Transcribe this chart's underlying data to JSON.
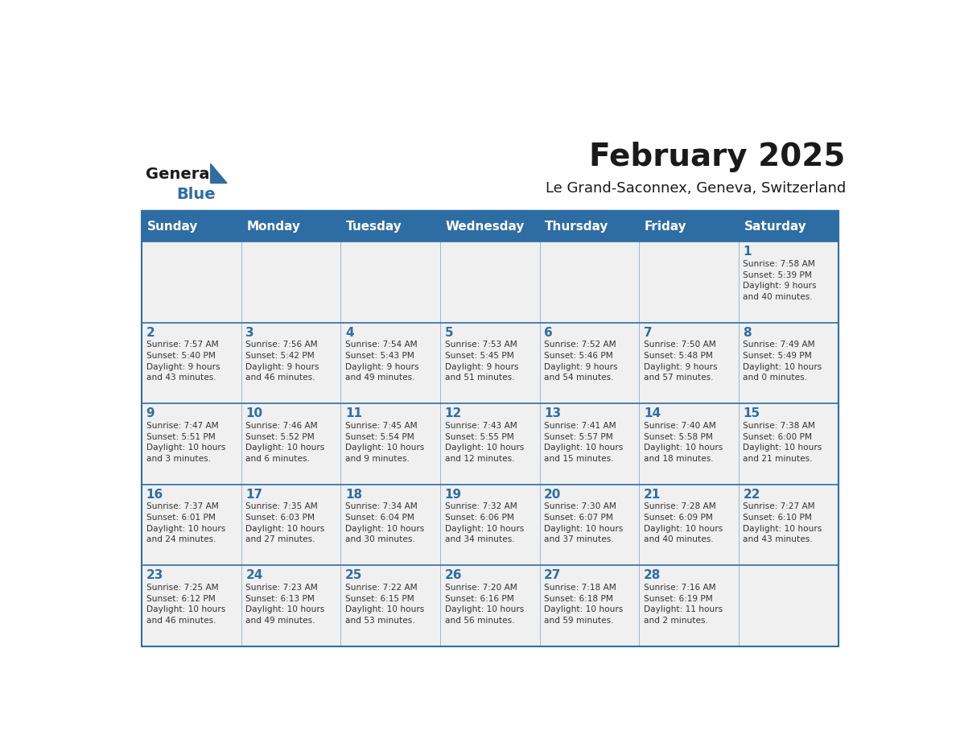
{
  "title": "February 2025",
  "subtitle": "Le Grand-Saconnex, Geneva, Switzerland",
  "days_of_week": [
    "Sunday",
    "Monday",
    "Tuesday",
    "Wednesday",
    "Thursday",
    "Friday",
    "Saturday"
  ],
  "header_bg": "#2E6DA4",
  "header_text": "#FFFFFF",
  "cell_bg_light": "#F0F0F0",
  "cell_text": "#333333",
  "day_num_color": "#2E6DA4",
  "border_color": "#2E6DA4",
  "logo_general_color": "#1a1a1a",
  "logo_blue_color": "#2E6DA4",
  "calendar_data": [
    [
      {
        "day": null,
        "info": null
      },
      {
        "day": null,
        "info": null
      },
      {
        "day": null,
        "info": null
      },
      {
        "day": null,
        "info": null
      },
      {
        "day": null,
        "info": null
      },
      {
        "day": null,
        "info": null
      },
      {
        "day": 1,
        "info": "Sunrise: 7:58 AM\nSunset: 5:39 PM\nDaylight: 9 hours\nand 40 minutes."
      }
    ],
    [
      {
        "day": 2,
        "info": "Sunrise: 7:57 AM\nSunset: 5:40 PM\nDaylight: 9 hours\nand 43 minutes."
      },
      {
        "day": 3,
        "info": "Sunrise: 7:56 AM\nSunset: 5:42 PM\nDaylight: 9 hours\nand 46 minutes."
      },
      {
        "day": 4,
        "info": "Sunrise: 7:54 AM\nSunset: 5:43 PM\nDaylight: 9 hours\nand 49 minutes."
      },
      {
        "day": 5,
        "info": "Sunrise: 7:53 AM\nSunset: 5:45 PM\nDaylight: 9 hours\nand 51 minutes."
      },
      {
        "day": 6,
        "info": "Sunrise: 7:52 AM\nSunset: 5:46 PM\nDaylight: 9 hours\nand 54 minutes."
      },
      {
        "day": 7,
        "info": "Sunrise: 7:50 AM\nSunset: 5:48 PM\nDaylight: 9 hours\nand 57 minutes."
      },
      {
        "day": 8,
        "info": "Sunrise: 7:49 AM\nSunset: 5:49 PM\nDaylight: 10 hours\nand 0 minutes."
      }
    ],
    [
      {
        "day": 9,
        "info": "Sunrise: 7:47 AM\nSunset: 5:51 PM\nDaylight: 10 hours\nand 3 minutes."
      },
      {
        "day": 10,
        "info": "Sunrise: 7:46 AM\nSunset: 5:52 PM\nDaylight: 10 hours\nand 6 minutes."
      },
      {
        "day": 11,
        "info": "Sunrise: 7:45 AM\nSunset: 5:54 PM\nDaylight: 10 hours\nand 9 minutes."
      },
      {
        "day": 12,
        "info": "Sunrise: 7:43 AM\nSunset: 5:55 PM\nDaylight: 10 hours\nand 12 minutes."
      },
      {
        "day": 13,
        "info": "Sunrise: 7:41 AM\nSunset: 5:57 PM\nDaylight: 10 hours\nand 15 minutes."
      },
      {
        "day": 14,
        "info": "Sunrise: 7:40 AM\nSunset: 5:58 PM\nDaylight: 10 hours\nand 18 minutes."
      },
      {
        "day": 15,
        "info": "Sunrise: 7:38 AM\nSunset: 6:00 PM\nDaylight: 10 hours\nand 21 minutes."
      }
    ],
    [
      {
        "day": 16,
        "info": "Sunrise: 7:37 AM\nSunset: 6:01 PM\nDaylight: 10 hours\nand 24 minutes."
      },
      {
        "day": 17,
        "info": "Sunrise: 7:35 AM\nSunset: 6:03 PM\nDaylight: 10 hours\nand 27 minutes."
      },
      {
        "day": 18,
        "info": "Sunrise: 7:34 AM\nSunset: 6:04 PM\nDaylight: 10 hours\nand 30 minutes."
      },
      {
        "day": 19,
        "info": "Sunrise: 7:32 AM\nSunset: 6:06 PM\nDaylight: 10 hours\nand 34 minutes."
      },
      {
        "day": 20,
        "info": "Sunrise: 7:30 AM\nSunset: 6:07 PM\nDaylight: 10 hours\nand 37 minutes."
      },
      {
        "day": 21,
        "info": "Sunrise: 7:28 AM\nSunset: 6:09 PM\nDaylight: 10 hours\nand 40 minutes."
      },
      {
        "day": 22,
        "info": "Sunrise: 7:27 AM\nSunset: 6:10 PM\nDaylight: 10 hours\nand 43 minutes."
      }
    ],
    [
      {
        "day": 23,
        "info": "Sunrise: 7:25 AM\nSunset: 6:12 PM\nDaylight: 10 hours\nand 46 minutes."
      },
      {
        "day": 24,
        "info": "Sunrise: 7:23 AM\nSunset: 6:13 PM\nDaylight: 10 hours\nand 49 minutes."
      },
      {
        "day": 25,
        "info": "Sunrise: 7:22 AM\nSunset: 6:15 PM\nDaylight: 10 hours\nand 53 minutes."
      },
      {
        "day": 26,
        "info": "Sunrise: 7:20 AM\nSunset: 6:16 PM\nDaylight: 10 hours\nand 56 minutes."
      },
      {
        "day": 27,
        "info": "Sunrise: 7:18 AM\nSunset: 6:18 PM\nDaylight: 10 hours\nand 59 minutes."
      },
      {
        "day": 28,
        "info": "Sunrise: 7:16 AM\nSunset: 6:19 PM\nDaylight: 11 hours\nand 2 minutes."
      },
      {
        "day": null,
        "info": null
      }
    ]
  ]
}
